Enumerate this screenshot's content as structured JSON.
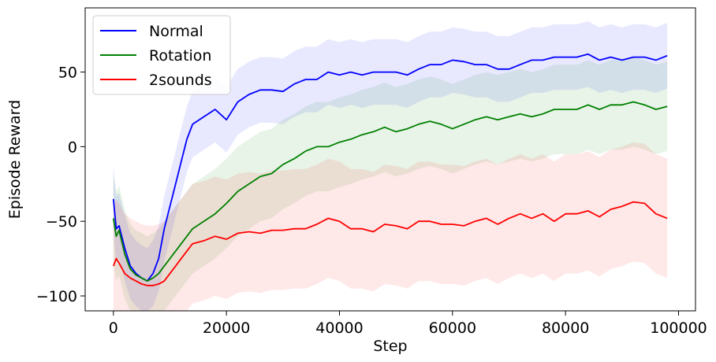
{
  "chart_data": {
    "type": "line",
    "title": "",
    "xlabel": "Step",
    "ylabel": "Episode Reward",
    "xlim": [
      -5000,
      103000
    ],
    "ylim": [
      -110,
      93
    ],
    "xticks": [
      0,
      20000,
      40000,
      60000,
      80000,
      100000
    ],
    "xtick_labels": [
      "0",
      "20000",
      "40000",
      "60000",
      "80000",
      "100000"
    ],
    "yticks": [
      50,
      0,
      -50,
      -100
    ],
    "ytick_labels": [
      "50",
      "0",
      "−50",
      "−100"
    ],
    "grid": false,
    "legend_position": "top-left",
    "series": [
      {
        "name": "Normal",
        "color": "#0000ff",
        "x": [
          0,
          500,
          1000,
          2000,
          3000,
          4000,
          5000,
          6000,
          7000,
          8000,
          9000,
          10000,
          11000,
          12000,
          13000,
          14000,
          16000,
          18000,
          20000,
          22000,
          24000,
          26000,
          28000,
          30000,
          32000,
          34000,
          36000,
          38000,
          40000,
          42000,
          44000,
          46000,
          48000,
          50000,
          52000,
          54000,
          56000,
          58000,
          60000,
          62000,
          64000,
          66000,
          68000,
          70000,
          72000,
          74000,
          76000,
          78000,
          80000,
          82000,
          84000,
          86000,
          88000,
          90000,
          92000,
          94000,
          96000,
          98000
        ],
        "values": [
          -35,
          -55,
          -53,
          -68,
          -80,
          -85,
          -88,
          -90,
          -85,
          -75,
          -55,
          -40,
          -25,
          -10,
          5,
          15,
          20,
          25,
          18,
          30,
          35,
          38,
          38,
          37,
          42,
          45,
          45,
          50,
          48,
          50,
          48,
          50,
          50,
          50,
          48,
          52,
          55,
          55,
          58,
          57,
          55,
          55,
          52,
          52,
          55,
          58,
          58,
          60,
          60,
          60,
          62,
          58,
          60,
          58,
          60,
          60,
          58,
          61
        ]
      },
      {
        "name": "Rotation",
        "color": "#008000",
        "x": [
          0,
          500,
          1000,
          2000,
          3000,
          4000,
          5000,
          6000,
          7000,
          8000,
          9000,
          10000,
          11000,
          12000,
          13000,
          14000,
          16000,
          18000,
          20000,
          22000,
          24000,
          26000,
          28000,
          30000,
          32000,
          34000,
          36000,
          38000,
          40000,
          42000,
          44000,
          46000,
          48000,
          50000,
          52000,
          54000,
          56000,
          58000,
          60000,
          62000,
          64000,
          66000,
          68000,
          70000,
          72000,
          74000,
          76000,
          78000,
          80000,
          82000,
          84000,
          86000,
          88000,
          90000,
          92000,
          94000,
          96000,
          98000
        ],
        "values": [
          -48,
          -60,
          -56,
          -72,
          -82,
          -86,
          -88,
          -90,
          -88,
          -85,
          -80,
          -75,
          -70,
          -65,
          -60,
          -55,
          -50,
          -45,
          -38,
          -30,
          -25,
          -20,
          -18,
          -12,
          -8,
          -3,
          0,
          0,
          3,
          5,
          8,
          10,
          13,
          10,
          12,
          15,
          17,
          15,
          12,
          15,
          18,
          20,
          18,
          20,
          22,
          20,
          22,
          25,
          25,
          25,
          28,
          25,
          28,
          28,
          30,
          28,
          25,
          27
        ]
      },
      {
        "name": "2sounds",
        "color": "#ff0000",
        "x": [
          0,
          500,
          1000,
          2000,
          3000,
          4000,
          5000,
          6000,
          7000,
          8000,
          9000,
          10000,
          11000,
          12000,
          13000,
          14000,
          16000,
          18000,
          20000,
          22000,
          24000,
          26000,
          28000,
          30000,
          32000,
          34000,
          36000,
          38000,
          40000,
          42000,
          44000,
          46000,
          48000,
          50000,
          52000,
          54000,
          56000,
          58000,
          60000,
          62000,
          64000,
          66000,
          68000,
          70000,
          72000,
          74000,
          76000,
          78000,
          80000,
          82000,
          84000,
          86000,
          88000,
          90000,
          92000,
          94000,
          96000,
          98000
        ],
        "values": [
          -80,
          -75,
          -78,
          -85,
          -88,
          -90,
          -92,
          -93,
          -93,
          -92,
          -90,
          -85,
          -80,
          -75,
          -70,
          -65,
          -63,
          -60,
          -62,
          -58,
          -57,
          -58,
          -56,
          -56,
          -55,
          -55,
          -52,
          -48,
          -50,
          -55,
          -55,
          -57,
          -52,
          -53,
          -55,
          -50,
          -50,
          -52,
          -52,
          -53,
          -50,
          -48,
          -52,
          -48,
          -45,
          -48,
          -45,
          -50,
          -45,
          -45,
          -43,
          -47,
          -42,
          -40,
          -37,
          -38,
          -45,
          -48
        ]
      }
    ]
  }
}
